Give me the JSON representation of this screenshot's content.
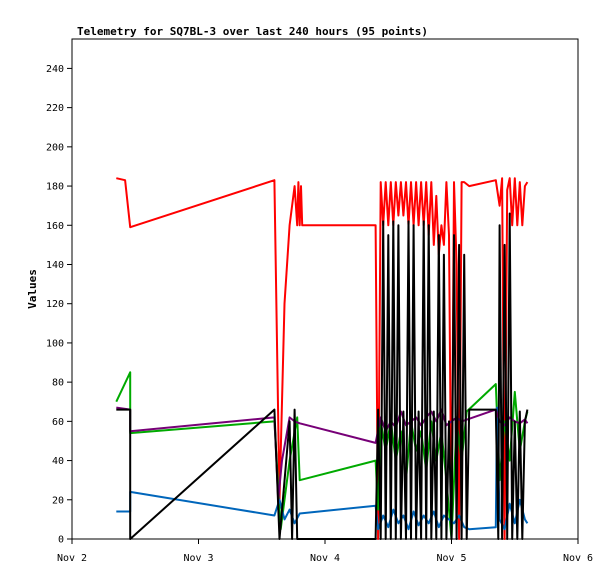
{
  "chart_data": {
    "type": "line",
    "title": "Telemetry for SQ7BL-3 over last 240 hours (95 points)",
    "xlabel": "",
    "ylabel": "Values",
    "xlim": [
      0,
      4
    ],
    "ylim": [
      0,
      255
    ],
    "x_ticks": [
      {
        "x": 0,
        "label": "Nov 2"
      },
      {
        "x": 1,
        "label": "Nov 3"
      },
      {
        "x": 2,
        "label": "Nov 4"
      },
      {
        "x": 3,
        "label": "Nov 5"
      },
      {
        "x": 4,
        "label": "Nov 6"
      }
    ],
    "y_ticks": [
      0,
      20,
      40,
      60,
      80,
      100,
      120,
      140,
      160,
      180,
      200,
      220,
      240
    ],
    "grid": false,
    "series": [
      {
        "color": "#ff0000",
        "x": [
          0.35,
          0.42,
          0.46,
          1.6,
          1.64,
          1.68,
          1.72,
          1.76,
          1.78,
          1.79,
          1.8,
          1.81,
          1.82,
          2.4,
          2.42,
          2.44,
          2.46,
          2.48,
          2.5,
          2.52,
          2.54,
          2.56,
          2.58,
          2.6,
          2.62,
          2.64,
          2.66,
          2.68,
          2.7,
          2.72,
          2.74,
          2.76,
          2.78,
          2.8,
          2.82,
          2.84,
          2.86,
          2.88,
          2.9,
          2.92,
          2.94,
          2.96,
          2.98,
          3.0,
          3.02,
          3.04,
          3.06,
          3.08,
          3.1,
          3.12,
          3.14,
          3.35,
          3.38,
          3.4,
          3.42,
          3.44,
          3.46,
          3.48,
          3.5,
          3.52,
          3.54,
          3.56,
          3.58,
          3.6
        ],
        "values": [
          184,
          183,
          159,
          183,
          20,
          120,
          160,
          180,
          160,
          182,
          160,
          180,
          160,
          160,
          0,
          182,
          160,
          182,
          160,
          182,
          160,
          182,
          165,
          182,
          165,
          182,
          160,
          182,
          160,
          182,
          160,
          182,
          160,
          182,
          155,
          182,
          150,
          175,
          145,
          160,
          150,
          182,
          155,
          0,
          182,
          140,
          0,
          182,
          182,
          181,
          180,
          183,
          170,
          184,
          0,
          178,
          184,
          160,
          184,
          160,
          182,
          160,
          180,
          182
        ]
      },
      {
        "color": "#00aa00",
        "x": [
          0.35,
          0.46,
          0.46,
          1.6,
          1.65,
          1.72,
          1.78,
          1.8,
          2.4,
          2.42,
          2.44,
          2.48,
          2.52,
          2.56,
          2.6,
          2.64,
          2.68,
          2.72,
          2.76,
          2.8,
          2.84,
          2.88,
          2.92,
          2.96,
          3.0,
          3.04,
          3.08,
          3.12,
          3.35,
          3.38,
          3.42,
          3.46,
          3.5,
          3.54,
          3.58,
          3.6
        ],
        "values": [
          70,
          85,
          54,
          60,
          5,
          40,
          62,
          30,
          40,
          15,
          60,
          45,
          60,
          40,
          55,
          30,
          60,
          45,
          55,
          35,
          60,
          40,
          55,
          30,
          0,
          60,
          40,
          65,
          79,
          30,
          60,
          40,
          75,
          45,
          60,
          65
        ]
      },
      {
        "color": "#0066bb",
        "x": [
          0.35,
          0.46,
          0.46,
          1.6,
          1.64,
          1.68,
          1.72,
          1.76,
          1.8,
          2.4,
          2.42,
          2.46,
          2.5,
          2.54,
          2.58,
          2.62,
          2.66,
          2.7,
          2.74,
          2.78,
          2.82,
          2.86,
          2.9,
          2.94,
          2.98,
          3.02,
          3.06,
          3.1,
          3.14,
          3.35,
          3.36,
          3.38,
          3.42,
          3.46,
          3.5,
          3.54,
          3.58,
          3.6
        ],
        "values": [
          14,
          14,
          24,
          12,
          20,
          10,
          15,
          8,
          13,
          17,
          5,
          12,
          6,
          15,
          8,
          12,
          5,
          14,
          7,
          12,
          8,
          14,
          6,
          12,
          10,
          8,
          12,
          6,
          5,
          6,
          67,
          10,
          5,
          18,
          8,
          20,
          10,
          8
        ]
      },
      {
        "color": "#770077",
        "x": [
          0.35,
          0.46,
          0.46,
          1.6,
          1.63,
          1.66,
          1.72,
          1.76,
          1.8,
          2.4,
          2.44,
          2.48,
          2.52,
          2.56,
          2.6,
          2.64,
          2.68,
          2.72,
          2.76,
          2.8,
          2.84,
          2.88,
          2.92,
          2.96,
          3.0,
          3.04,
          3.08,
          3.35,
          3.38,
          3.42,
          3.46,
          3.5,
          3.54,
          3.58,
          3.6
        ],
        "values": [
          67,
          66,
          55,
          62,
          20,
          40,
          62,
          60,
          59,
          49,
          62,
          55,
          60,
          57,
          65,
          58,
          60,
          62,
          58,
          62,
          65,
          60,
          66,
          58,
          60,
          62,
          60,
          66,
          60,
          58,
          62,
          60,
          59,
          61,
          59
        ]
      },
      {
        "color": "#000000",
        "x": [
          0.35,
          0.46,
          0.46,
          1.6,
          1.64,
          1.72,
          1.74,
          1.76,
          1.78,
          1.8,
          2.4,
          2.42,
          2.44,
          2.46,
          2.48,
          2.5,
          2.52,
          2.54,
          2.56,
          2.58,
          2.6,
          2.62,
          2.64,
          2.66,
          2.68,
          2.7,
          2.72,
          2.74,
          2.76,
          2.78,
          2.8,
          2.82,
          2.84,
          2.86,
          2.88,
          2.9,
          2.92,
          2.94,
          2.96,
          2.98,
          3.0,
          3.02,
          3.04,
          3.06,
          3.08,
          3.1,
          3.12,
          3.14,
          3.35,
          3.37,
          3.38,
          3.4,
          3.42,
          3.44,
          3.46,
          3.48,
          3.5,
          3.52,
          3.54,
          3.56,
          3.58,
          3.6
        ],
        "values": [
          66,
          66,
          0,
          66,
          0,
          60,
          0,
          66,
          0,
          0,
          0,
          66,
          0,
          162,
          0,
          155,
          0,
          162,
          0,
          160,
          0,
          65,
          0,
          162,
          0,
          160,
          0,
          65,
          0,
          162,
          0,
          160,
          0,
          65,
          0,
          155,
          0,
          145,
          0,
          60,
          0,
          155,
          0,
          150,
          0,
          145,
          0,
          66,
          66,
          0,
          160,
          0,
          150,
          0,
          166,
          0,
          60,
          0,
          65,
          0,
          60,
          66
        ]
      }
    ]
  }
}
